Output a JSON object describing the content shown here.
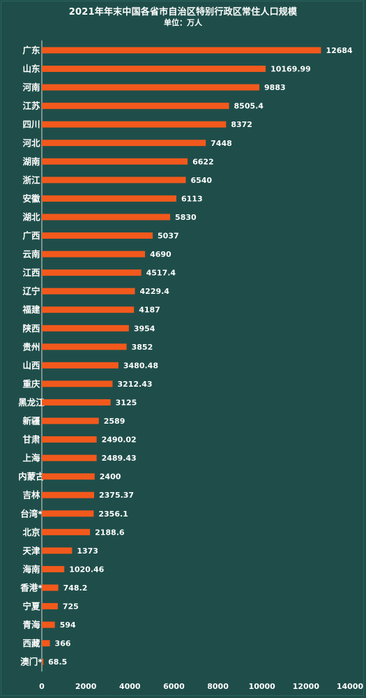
{
  "chart_data": {
    "type": "bar",
    "orientation": "horizontal",
    "title": "2021年年末中国各省市自治区特别行政区常住人口规模",
    "subtitle": "单位：万人",
    "categories": [
      "广东",
      "山东",
      "河南",
      "江苏",
      "四川",
      "河北",
      "湖南",
      "浙江",
      "安徽",
      "湖北",
      "广西",
      "云南",
      "江西",
      "辽宁",
      "福建",
      "陕西",
      "贵州",
      "山西",
      "重庆",
      "黑龙江",
      "新疆",
      "甘肃",
      "上海",
      "内蒙古",
      "吉林",
      "台湾*",
      "北京",
      "天津",
      "海南",
      "香港*",
      "宁夏",
      "青海",
      "西藏",
      "澳门*"
    ],
    "values": [
      12684,
      10169.99,
      9883,
      8505.4,
      8372,
      7448,
      6622,
      6540,
      6113,
      5830,
      5037,
      4690,
      4517.4,
      4229.4,
      4187,
      3954,
      3852,
      3480.48,
      3212.43,
      3125,
      2589,
      2490.02,
      2489.43,
      2400,
      2375.37,
      2356.1,
      2188.6,
      1373,
      1020.46,
      748.2,
      725,
      594,
      366,
      68.5
    ],
    "value_labels": [
      "12684",
      "10169.99",
      "9883",
      "8505.4",
      "8372",
      "7448",
      "6622",
      "6540",
      "6113",
      "5830",
      "5037",
      "4690",
      "4517.4",
      "4229.4",
      "4187",
      "3954",
      "3852",
      "3480.48",
      "3212.43",
      "3125",
      "2589",
      "2490.02",
      "2489.43",
      "2400",
      "2375.37",
      "2356.1",
      "2188.6",
      "1373",
      "1020.46",
      "748.2",
      "725",
      "594",
      "366",
      "68.5"
    ],
    "xlim": [
      0,
      14000
    ],
    "x_ticks": [
      "0",
      "2000",
      "4000",
      "6000",
      "8000",
      "10000",
      "12000",
      "14000"
    ],
    "grid": false,
    "legend": "none",
    "colors": {
      "bar": "#f2591c",
      "background": "#1f4e4a",
      "text": "#ffffff"
    }
  }
}
